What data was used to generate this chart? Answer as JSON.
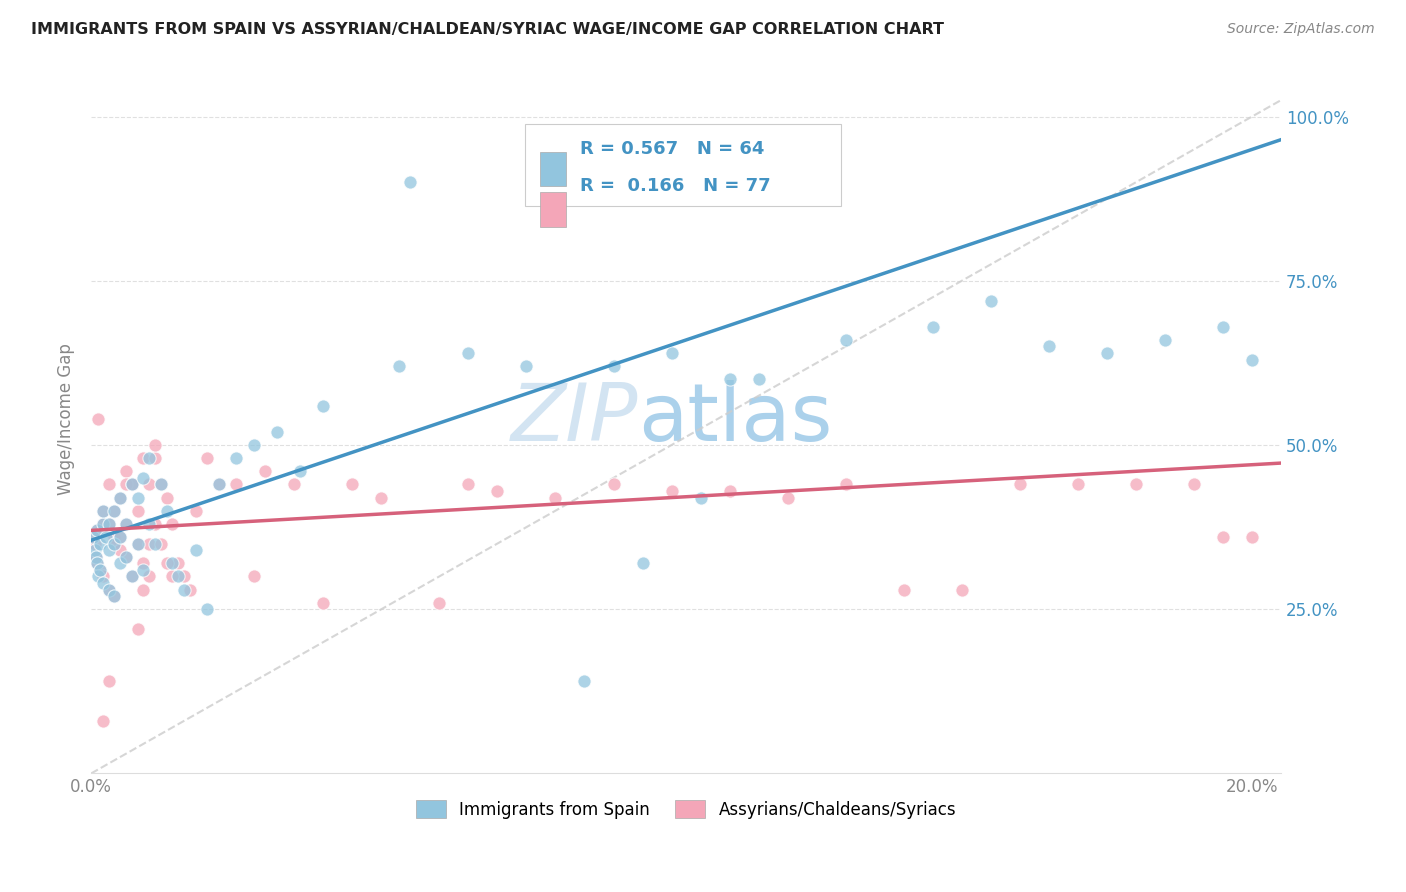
{
  "title": "IMMIGRANTS FROM SPAIN VS ASSYRIAN/CHALDEAN/SYRIAC WAGE/INCOME GAP CORRELATION CHART",
  "source": "Source: ZipAtlas.com",
  "ylabel": "Wage/Income Gap",
  "legend_label1": "Immigrants from Spain",
  "legend_label2": "Assyrians/Chaldeans/Syriacs",
  "R1": "0.567",
  "N1": "64",
  "R2": "0.166",
  "N2": "77",
  "color_blue": "#92c5de",
  "color_pink": "#f4a6b8",
  "color_blue_line": "#4393c3",
  "color_pink_line": "#d6617b",
  "color_blue_text": "#4393c3",
  "color_axis_text": "#888888",
  "xlim_max": 0.205,
  "ylim_max": 1.08,
  "blue_x": [
    0.0004,
    0.0006,
    0.0008,
    0.001,
    0.001,
    0.0012,
    0.0015,
    0.0015,
    0.002,
    0.002,
    0.002,
    0.0025,
    0.003,
    0.003,
    0.003,
    0.004,
    0.004,
    0.004,
    0.005,
    0.005,
    0.005,
    0.006,
    0.006,
    0.007,
    0.007,
    0.008,
    0.008,
    0.009,
    0.009,
    0.01,
    0.01,
    0.011,
    0.012,
    0.013,
    0.014,
    0.015,
    0.016,
    0.018,
    0.02,
    0.022,
    0.025,
    0.028,
    0.032,
    0.036,
    0.04,
    0.055,
    0.065,
    0.075,
    0.085,
    0.095,
    0.105,
    0.115,
    0.13,
    0.145,
    0.155,
    0.165,
    0.175,
    0.185,
    0.195,
    0.2,
    0.053,
    0.09,
    0.1,
    0.11
  ],
  "blue_y": [
    0.36,
    0.34,
    0.33,
    0.32,
    0.37,
    0.3,
    0.35,
    0.31,
    0.29,
    0.38,
    0.4,
    0.36,
    0.28,
    0.34,
    0.38,
    0.27,
    0.35,
    0.4,
    0.32,
    0.36,
    0.42,
    0.33,
    0.38,
    0.3,
    0.44,
    0.35,
    0.42,
    0.31,
    0.45,
    0.38,
    0.48,
    0.35,
    0.44,
    0.4,
    0.32,
    0.3,
    0.28,
    0.34,
    0.25,
    0.44,
    0.48,
    0.5,
    0.52,
    0.46,
    0.56,
    0.9,
    0.64,
    0.62,
    0.14,
    0.32,
    0.42,
    0.6,
    0.66,
    0.68,
    0.72,
    0.65,
    0.64,
    0.66,
    0.68,
    0.63,
    0.62,
    0.62,
    0.64,
    0.6
  ],
  "pink_x": [
    0.0004,
    0.0006,
    0.0008,
    0.001,
    0.001,
    0.0012,
    0.0015,
    0.002,
    0.002,
    0.002,
    0.003,
    0.003,
    0.003,
    0.004,
    0.004,
    0.004,
    0.005,
    0.005,
    0.006,
    0.006,
    0.006,
    0.007,
    0.007,
    0.008,
    0.008,
    0.009,
    0.009,
    0.01,
    0.01,
    0.011,
    0.011,
    0.012,
    0.013,
    0.014,
    0.015,
    0.016,
    0.017,
    0.018,
    0.02,
    0.022,
    0.025,
    0.028,
    0.03,
    0.035,
    0.04,
    0.045,
    0.05,
    0.06,
    0.065,
    0.07,
    0.08,
    0.09,
    0.1,
    0.11,
    0.12,
    0.13,
    0.14,
    0.15,
    0.16,
    0.17,
    0.18,
    0.19,
    0.195,
    0.2,
    0.002,
    0.003,
    0.004,
    0.005,
    0.006,
    0.007,
    0.008,
    0.009,
    0.01,
    0.011,
    0.012,
    0.013,
    0.014
  ],
  "pink_y": [
    0.36,
    0.35,
    0.33,
    0.32,
    0.37,
    0.54,
    0.31,
    0.3,
    0.38,
    0.4,
    0.28,
    0.38,
    0.44,
    0.27,
    0.36,
    0.4,
    0.36,
    0.42,
    0.33,
    0.38,
    0.46,
    0.3,
    0.44,
    0.35,
    0.4,
    0.32,
    0.48,
    0.35,
    0.44,
    0.38,
    0.48,
    0.44,
    0.42,
    0.38,
    0.32,
    0.3,
    0.28,
    0.4,
    0.48,
    0.44,
    0.44,
    0.3,
    0.46,
    0.44,
    0.26,
    0.44,
    0.42,
    0.26,
    0.44,
    0.43,
    0.42,
    0.44,
    0.43,
    0.43,
    0.42,
    0.44,
    0.28,
    0.28,
    0.44,
    0.44,
    0.44,
    0.44,
    0.36,
    0.36,
    0.08,
    0.14,
    0.35,
    0.34,
    0.44,
    0.44,
    0.22,
    0.28,
    0.3,
    0.5,
    0.35,
    0.32,
    0.3
  ]
}
